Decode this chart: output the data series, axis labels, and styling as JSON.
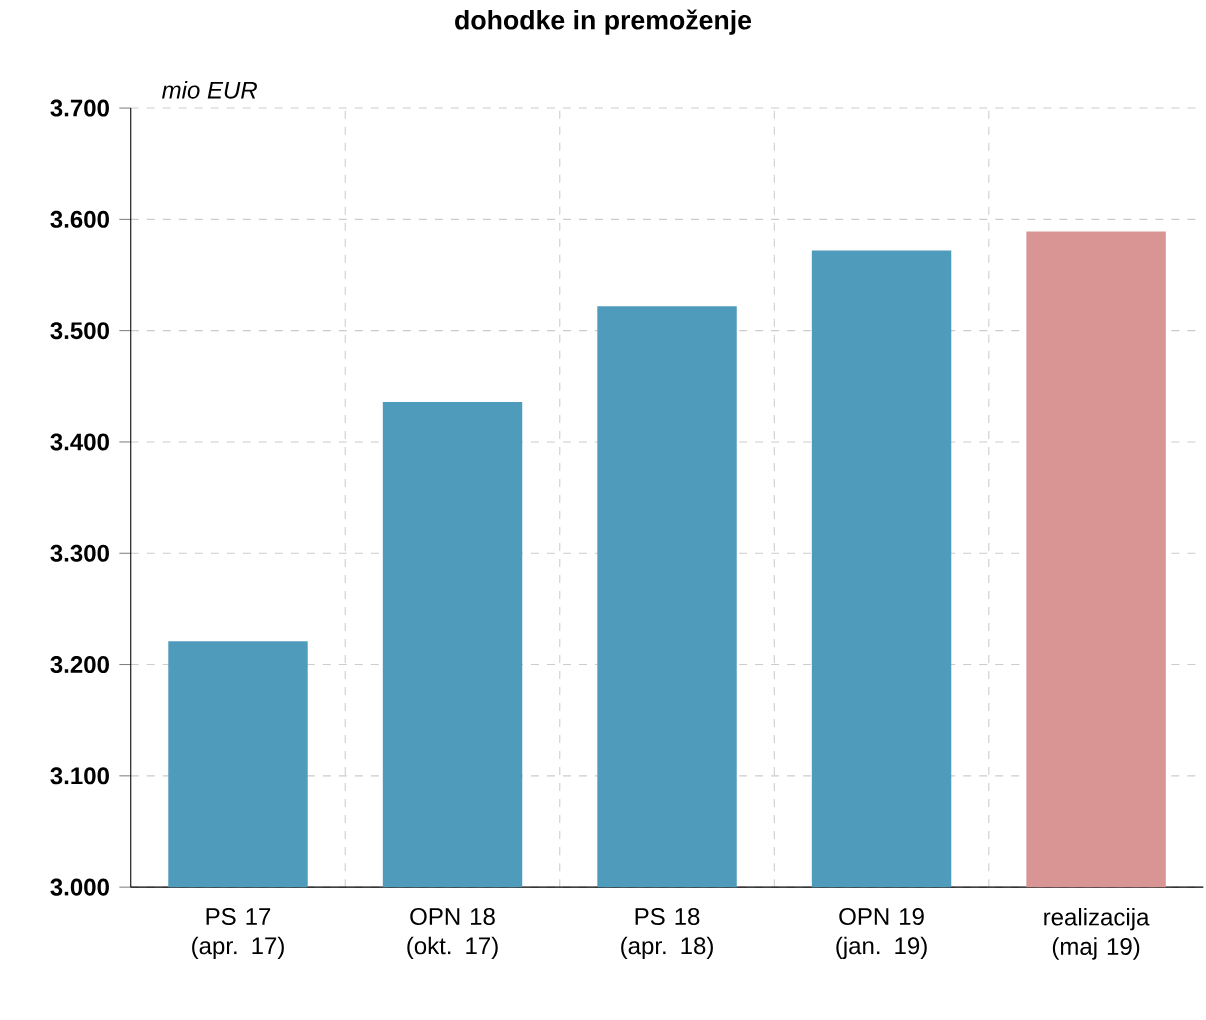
{
  "chart_data": {
    "type": "bar",
    "title": "dohodke in premoženje",
    "ylabel": "mio EUR",
    "categories": [
      "PS 17 (apr. 17)",
      "OPN 18 (okt. 17)",
      "PS 18 (apr. 18)",
      "OPN 19 (jan. 19)",
      "realizacija (maj 19)"
    ],
    "values": [
      3221,
      3436,
      3522,
      3572,
      3589
    ],
    "colors": [
      "#4f9bbb",
      "#4f9bbb",
      "#4f9bbb",
      "#4f9bbb",
      "#d99594"
    ],
    "ylim": [
      3000,
      3700
    ],
    "yticks": [
      {
        "value": 3000,
        "label": "3.000"
      },
      {
        "value": 3100,
        "label": "3.100"
      },
      {
        "value": 3200,
        "label": "3.200"
      },
      {
        "value": 3300,
        "label": "3.300"
      },
      {
        "value": 3400,
        "label": "3.400"
      },
      {
        "value": 3500,
        "label": "3.500"
      },
      {
        "value": 3600,
        "label": "3.600"
      },
      {
        "value": 3700,
        "label": "3.700"
      }
    ],
    "grid": true
  }
}
